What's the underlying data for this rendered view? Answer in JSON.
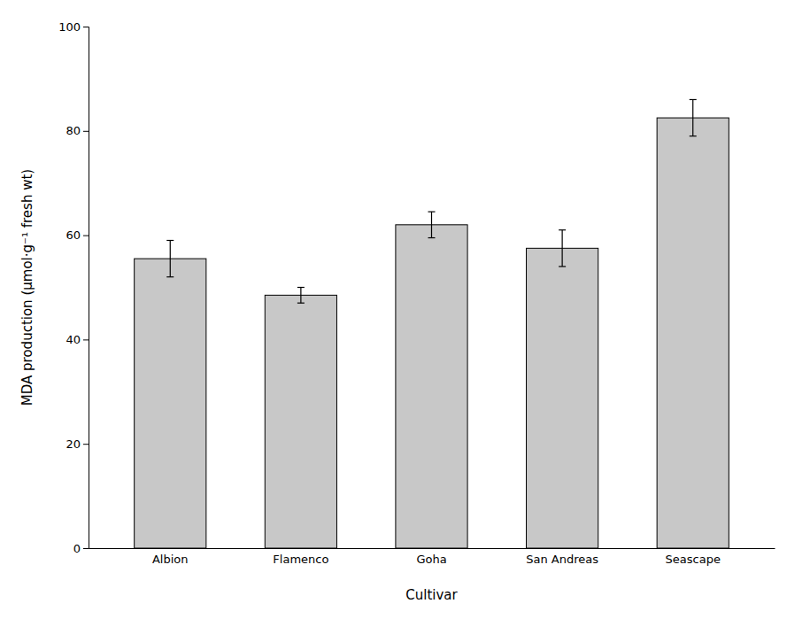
{
  "chart_data": {
    "type": "bar",
    "categories": [
      "Albion",
      "Flamenco",
      "Goha",
      "San Andreas",
      "Seascape"
    ],
    "values": [
      55.5,
      48.5,
      62.0,
      57.5,
      82.5
    ],
    "errors": [
      3.5,
      1.5,
      2.5,
      3.5,
      3.5
    ],
    "color": "#c8c8c8",
    "xlabel": "Cultivar",
    "ylabel": "MDA production (μmol·g⁻¹ fresh wt)",
    "ylim": [
      0,
      100
    ],
    "yticks": [
      0,
      20,
      40,
      60,
      80,
      100
    ],
    "grid": false
  }
}
